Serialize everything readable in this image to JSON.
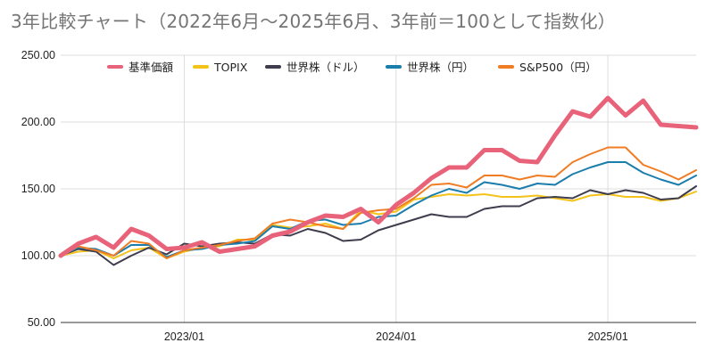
{
  "chart_data": {
    "type": "line",
    "title": "3年比較チャート（2022年6月〜2025年6月、3年前＝100として指数化）",
    "xlabel": "",
    "ylabel": "",
    "ylim": [
      50,
      250
    ],
    "yticks": [
      "250.00",
      "200.00",
      "150.00",
      "100.00",
      "50.00"
    ],
    "ytick_values": [
      250,
      200,
      150,
      100,
      50
    ],
    "xticks": [
      "2023/01",
      "2024/01",
      "2025/01"
    ],
    "xtick_dates": [
      "2023-01",
      "2024-01",
      "2025-01"
    ],
    "x": [
      "2022-06",
      "2022-07",
      "2022-08",
      "2022-09",
      "2022-10",
      "2022-11",
      "2022-12",
      "2023-01",
      "2023-02",
      "2023-03",
      "2023-04",
      "2023-05",
      "2023-06",
      "2023-07",
      "2023-08",
      "2023-09",
      "2023-10",
      "2023-11",
      "2023-12",
      "2024-01",
      "2024-02",
      "2024-03",
      "2024-04",
      "2024-05",
      "2024-06",
      "2024-07",
      "2024-08",
      "2024-09",
      "2024-10",
      "2024-11",
      "2024-12",
      "2025-01",
      "2025-02",
      "2025-03",
      "2025-04",
      "2025-05",
      "2025-06"
    ],
    "grid": "vertical",
    "legend_position": "top",
    "series": [
      {
        "name": "基準価額",
        "color": "#e8637a",
        "values": [
          100,
          109,
          114,
          106,
          120,
          115,
          105,
          106,
          110,
          103,
          105,
          107,
          115,
          118,
          125,
          130,
          129,
          135,
          125,
          138,
          147,
          158,
          166,
          166,
          179,
          179,
          171,
          170,
          190,
          208,
          204,
          218,
          205,
          216,
          198,
          197,
          196
        ]
      },
      {
        "name": "TOPIX",
        "color": "#f4c31a",
        "values": [
          100,
          103,
          104,
          98,
          104,
          106,
          98,
          103,
          106,
          107,
          112,
          112,
          123,
          121,
          122,
          124,
          120,
          134,
          131,
          133,
          142,
          144,
          146,
          145,
          146,
          144,
          144,
          145,
          143,
          141,
          145,
          146,
          144,
          144,
          141,
          143,
          148
        ]
      },
      {
        "name": "世界株（ドル）",
        "color": "#3f3d4d",
        "values": [
          100,
          105,
          103,
          93,
          100,
          106,
          101,
          109,
          107,
          109,
          110,
          109,
          116,
          115,
          120,
          117,
          111,
          112,
          119,
          123,
          127,
          131,
          129,
          129,
          135,
          137,
          137,
          143,
          144,
          143,
          149,
          146,
          149,
          147,
          142,
          143,
          152
        ]
      },
      {
        "name": "世界株（円）",
        "color": "#1a7dac",
        "values": [
          100,
          106,
          105,
          100,
          108,
          108,
          99,
          104,
          105,
          108,
          109,
          111,
          122,
          120,
          126,
          127,
          123,
          124,
          129,
          130,
          138,
          145,
          150,
          147,
          155,
          153,
          150,
          154,
          153,
          161,
          166,
          170,
          170,
          162,
          157,
          153,
          160
        ]
      },
      {
        "name": "S&P500（円）",
        "color": "#f07c24",
        "values": [
          100,
          107,
          104,
          100,
          111,
          109,
          98,
          104,
          106,
          108,
          111,
          113,
          124,
          127,
          125,
          122,
          120,
          132,
          134,
          135,
          143,
          153,
          154,
          151,
          160,
          160,
          157,
          160,
          159,
          170,
          176,
          181,
          181,
          168,
          163,
          157,
          164
        ]
      }
    ]
  }
}
